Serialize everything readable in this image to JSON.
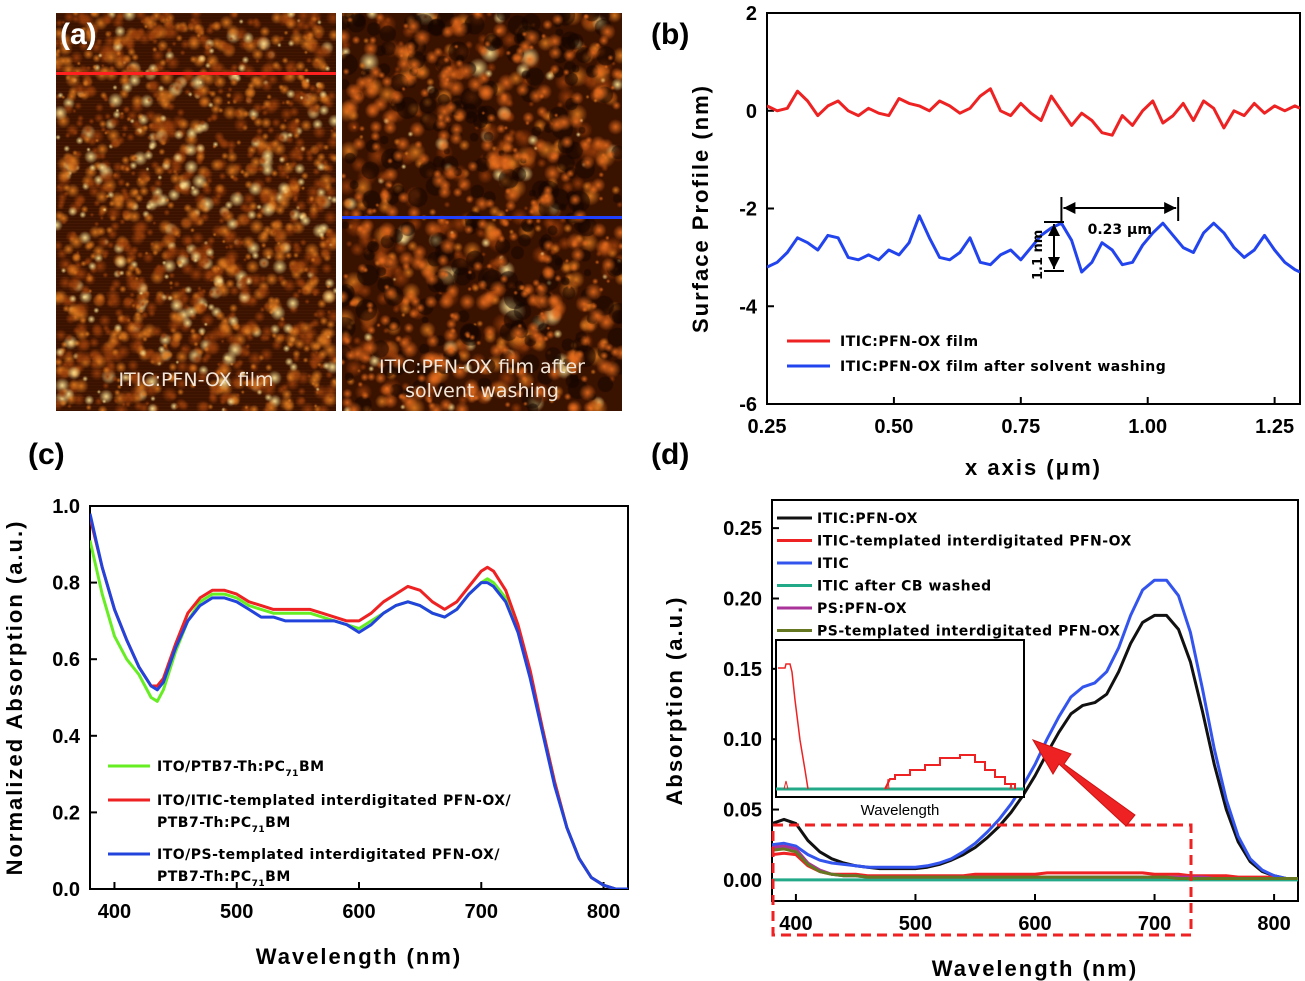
{
  "panels": {
    "a": {
      "label": "(a)",
      "left_caption": "ITIC:PFN-OX film",
      "right_caption_line1": "ITIC:PFN-OX film  after",
      "right_caption_line2": "solvent washing",
      "line_colors": {
        "left": "#ff2020",
        "right": "#2020ff"
      }
    },
    "b_label": "(b)",
    "c_label": "(c)",
    "d_label": "(d)"
  },
  "chart_data": [
    {
      "id": "b",
      "type": "line",
      "xlabel": "x axis (μm)",
      "ylabel": "Surface Profile (nm)",
      "xlim": [
        0.25,
        1.3
      ],
      "ylim": [
        -6,
        2
      ],
      "xticks": [
        "0.25",
        "0.50",
        "0.75",
        "1.00",
        "1.25"
      ],
      "xtick_values": [
        0.25,
        0.5,
        0.75,
        1.0,
        1.25
      ],
      "yticks": [
        "2",
        "0",
        "-2",
        "-4",
        "-6"
      ],
      "ytick_values": [
        2,
        0,
        -2,
        -4,
        -6
      ],
      "legend": "bottom-left",
      "series": [
        {
          "name": "ITIC:PFN-OX film",
          "color": "#ee2222",
          "x": [
            0.25,
            0.27,
            0.29,
            0.31,
            0.33,
            0.35,
            0.37,
            0.39,
            0.41,
            0.43,
            0.45,
            0.47,
            0.49,
            0.51,
            0.53,
            0.55,
            0.57,
            0.59,
            0.61,
            0.63,
            0.65,
            0.67,
            0.69,
            0.71,
            0.73,
            0.75,
            0.77,
            0.79,
            0.81,
            0.83,
            0.85,
            0.87,
            0.89,
            0.91,
            0.93,
            0.95,
            0.97,
            0.99,
            1.01,
            1.03,
            1.05,
            1.07,
            1.09,
            1.11,
            1.13,
            1.15,
            1.17,
            1.19,
            1.21,
            1.23,
            1.25,
            1.27,
            1.29,
            1.3
          ],
          "y": [
            0.1,
            0.0,
            0.05,
            0.4,
            0.2,
            -0.1,
            0.1,
            0.2,
            0.0,
            -0.1,
            0.05,
            -0.05,
            -0.1,
            0.25,
            0.15,
            0.1,
            0.0,
            0.2,
            0.1,
            -0.05,
            0.05,
            0.3,
            0.45,
            0.0,
            -0.1,
            0.15,
            -0.05,
            -0.2,
            0.3,
            0.0,
            -0.3,
            -0.05,
            -0.2,
            -0.45,
            -0.5,
            -0.1,
            -0.3,
            0.0,
            0.2,
            -0.25,
            -0.1,
            0.15,
            -0.2,
            0.2,
            0.05,
            -0.35,
            0.0,
            -0.1,
            0.15,
            -0.05,
            0.1,
            0.0,
            0.1,
            0.05
          ]
        },
        {
          "name": "ITIC:PFN-OX film after solvent washing",
          "color": "#2244ee",
          "x": [
            0.25,
            0.27,
            0.29,
            0.31,
            0.33,
            0.35,
            0.37,
            0.39,
            0.41,
            0.43,
            0.45,
            0.47,
            0.49,
            0.51,
            0.53,
            0.55,
            0.57,
            0.59,
            0.61,
            0.63,
            0.65,
            0.67,
            0.69,
            0.71,
            0.73,
            0.75,
            0.77,
            0.79,
            0.81,
            0.83,
            0.85,
            0.87,
            0.89,
            0.91,
            0.93,
            0.95,
            0.97,
            0.99,
            1.01,
            1.03,
            1.05,
            1.07,
            1.09,
            1.11,
            1.13,
            1.15,
            1.17,
            1.19,
            1.21,
            1.23,
            1.25,
            1.27,
            1.29,
            1.3
          ],
          "y": [
            -3.2,
            -3.1,
            -2.9,
            -2.6,
            -2.7,
            -2.85,
            -2.55,
            -2.6,
            -3.0,
            -3.05,
            -2.95,
            -3.05,
            -2.85,
            -2.95,
            -2.7,
            -2.15,
            -2.6,
            -3.0,
            -3.05,
            -2.9,
            -2.6,
            -3.1,
            -3.15,
            -2.95,
            -2.85,
            -3.05,
            -2.8,
            -2.55,
            -2.4,
            -2.3,
            -2.65,
            -3.3,
            -3.1,
            -2.7,
            -2.85,
            -3.15,
            -3.1,
            -2.75,
            -2.5,
            -2.3,
            -2.55,
            -2.8,
            -2.9,
            -2.5,
            -2.3,
            -2.5,
            -2.8,
            -3.0,
            -2.85,
            -2.55,
            -2.85,
            -3.1,
            -3.25,
            -3.3
          ]
        }
      ],
      "annotations": {
        "width_label": "0.23 μm",
        "height_label": "1.1 nm"
      }
    },
    {
      "id": "c",
      "type": "line",
      "xlabel": "Wavelength (nm)",
      "ylabel": "Normalized Absorption (a.u.)",
      "xlim": [
        380,
        820
      ],
      "ylim": [
        0,
        1.0
      ],
      "xticks": [
        "400",
        "500",
        "600",
        "700",
        "800"
      ],
      "xtick_values": [
        400,
        500,
        600,
        700,
        800
      ],
      "yticks": [
        "0.0",
        "0.2",
        "0.4",
        "0.6",
        "0.8",
        "1.0"
      ],
      "ytick_values": [
        0,
        0.2,
        0.4,
        0.6,
        0.8,
        1.0
      ],
      "legend": "bottom-left",
      "legend_entries": [
        {
          "line1": "ITO/PTB7-Th:PC",
          "sub1": "71",
          "tail1": "BM"
        },
        {
          "line1": "ITO/ITIC-templated interdigitated PFN-OX/",
          "line2": "PTB7-Th:PC",
          "sub2": "71",
          "tail2": "BM"
        },
        {
          "line1": "ITO/PS-templated interdigitated PFN-OX/",
          "line2": "PTB7-Th:PC",
          "sub2": "71",
          "tail2": "BM"
        }
      ],
      "x": [
        380,
        390,
        400,
        410,
        420,
        430,
        435,
        440,
        450,
        460,
        470,
        480,
        490,
        500,
        510,
        520,
        530,
        540,
        550,
        560,
        570,
        580,
        590,
        600,
        610,
        620,
        630,
        640,
        650,
        660,
        670,
        680,
        690,
        700,
        705,
        710,
        720,
        730,
        740,
        750,
        760,
        770,
        780,
        790,
        800,
        810,
        820
      ],
      "series": [
        {
          "name": "ITO/PTB7-Th:PC71BM",
          "color": "#66ee22",
          "y": [
            0.91,
            0.77,
            0.66,
            0.6,
            0.56,
            0.5,
            0.49,
            0.52,
            0.62,
            0.7,
            0.75,
            0.77,
            0.77,
            0.76,
            0.74,
            0.73,
            0.72,
            0.72,
            0.72,
            0.72,
            0.71,
            0.7,
            0.69,
            0.68,
            0.7,
            0.72,
            0.74,
            0.75,
            0.74,
            0.72,
            0.71,
            0.73,
            0.77,
            0.8,
            0.81,
            0.8,
            0.76,
            0.68,
            0.56,
            0.42,
            0.28,
            0.16,
            0.08,
            0.03,
            0.01,
            0.0,
            0.0
          ]
        },
        {
          "name": "ITO/ITIC-templated interdigitated PFN-OX/PTB7-Th:PC71BM",
          "color": "#ee2222",
          "y": [
            0.97,
            0.84,
            0.73,
            0.65,
            0.58,
            0.53,
            0.53,
            0.55,
            0.64,
            0.72,
            0.76,
            0.78,
            0.78,
            0.77,
            0.75,
            0.74,
            0.73,
            0.73,
            0.73,
            0.73,
            0.72,
            0.71,
            0.7,
            0.7,
            0.72,
            0.75,
            0.77,
            0.79,
            0.78,
            0.75,
            0.73,
            0.75,
            0.79,
            0.83,
            0.84,
            0.83,
            0.78,
            0.69,
            0.57,
            0.42,
            0.28,
            0.16,
            0.08,
            0.03,
            0.01,
            0.0,
            0.0
          ]
        },
        {
          "name": "ITO/PS-templated interdigitated PFN-OX/PTB7-Th:PC71BM",
          "color": "#2244dd",
          "y": [
            0.98,
            0.84,
            0.73,
            0.65,
            0.58,
            0.53,
            0.52,
            0.54,
            0.63,
            0.7,
            0.74,
            0.76,
            0.76,
            0.75,
            0.73,
            0.71,
            0.71,
            0.7,
            0.7,
            0.7,
            0.7,
            0.7,
            0.69,
            0.67,
            0.69,
            0.72,
            0.74,
            0.75,
            0.74,
            0.72,
            0.71,
            0.73,
            0.77,
            0.8,
            0.8,
            0.79,
            0.75,
            0.67,
            0.55,
            0.41,
            0.27,
            0.16,
            0.08,
            0.03,
            0.01,
            0.0,
            0.0
          ]
        }
      ]
    },
    {
      "id": "d",
      "type": "line",
      "xlabel": "Wavelength (nm)",
      "ylabel": "Absorption (a.u.)",
      "xlim": [
        380,
        820
      ],
      "ylim": [
        -0.015,
        0.27
      ],
      "xticks": [
        "400",
        "500",
        "600",
        "700",
        "800"
      ],
      "xtick_values": [
        400,
        500,
        600,
        700,
        800
      ],
      "yticks": [
        "0.00",
        "0.05",
        "0.10",
        "0.15",
        "0.20",
        "0.25"
      ],
      "ytick_values": [
        0,
        0.05,
        0.1,
        0.15,
        0.2,
        0.25
      ],
      "legend": "top-left",
      "x": [
        380,
        390,
        400,
        410,
        420,
        430,
        440,
        450,
        460,
        470,
        480,
        490,
        500,
        510,
        520,
        530,
        540,
        550,
        560,
        570,
        580,
        590,
        600,
        610,
        620,
        630,
        640,
        650,
        660,
        670,
        680,
        690,
        700,
        710,
        720,
        730,
        740,
        750,
        760,
        770,
        780,
        790,
        800,
        810,
        820
      ],
      "series": [
        {
          "name": "ITIC:PFN-OX",
          "color": "#111111",
          "y": [
            0.04,
            0.043,
            0.04,
            0.028,
            0.02,
            0.015,
            0.012,
            0.01,
            0.009,
            0.008,
            0.008,
            0.008,
            0.008,
            0.009,
            0.011,
            0.014,
            0.018,
            0.023,
            0.03,
            0.038,
            0.048,
            0.06,
            0.074,
            0.09,
            0.105,
            0.118,
            0.124,
            0.126,
            0.132,
            0.148,
            0.168,
            0.183,
            0.188,
            0.188,
            0.178,
            0.155,
            0.12,
            0.082,
            0.05,
            0.027,
            0.013,
            0.006,
            0.003,
            0.001,
            0.001
          ]
        },
        {
          "name": "ITIC-templated interdigitated PFN-OX",
          "color": "#ee2222",
          "y": [
            0.018,
            0.019,
            0.018,
            0.01,
            0.006,
            0.004,
            0.004,
            0.004,
            0.003,
            0.003,
            0.003,
            0.003,
            0.003,
            0.003,
            0.003,
            0.003,
            0.003,
            0.004,
            0.004,
            0.004,
            0.004,
            0.004,
            0.004,
            0.005,
            0.005,
            0.005,
            0.005,
            0.005,
            0.005,
            0.005,
            0.005,
            0.005,
            0.004,
            0.004,
            0.004,
            0.003,
            0.003,
            0.003,
            0.003,
            0.002,
            0.002,
            0.002,
            0.002,
            0.001,
            0.001
          ]
        },
        {
          "name": "ITIC",
          "color": "#3355ee",
          "y": [
            0.025,
            0.026,
            0.024,
            0.018,
            0.014,
            0.012,
            0.011,
            0.01,
            0.009,
            0.009,
            0.009,
            0.009,
            0.009,
            0.01,
            0.012,
            0.015,
            0.02,
            0.026,
            0.034,
            0.043,
            0.054,
            0.067,
            0.082,
            0.1,
            0.116,
            0.13,
            0.137,
            0.14,
            0.148,
            0.165,
            0.188,
            0.206,
            0.213,
            0.213,
            0.202,
            0.176,
            0.136,
            0.093,
            0.057,
            0.031,
            0.015,
            0.007,
            0.003,
            0.001,
            0.001
          ]
        },
        {
          "name": "ITIC after CB washed",
          "color": "#22aa88",
          "y": [
            0.0,
            0.0,
            0.0,
            0.0,
            0.0,
            0.0,
            0.0,
            0.0,
            0.0,
            0.0,
            0.0,
            0.0,
            0.0,
            0.0,
            0.0,
            0.0,
            0.0,
            0.0,
            0.0,
            0.0,
            0.0,
            0.0,
            0.0,
            0.0,
            0.0,
            0.0,
            0.0,
            0.0,
            0.0,
            0.0,
            0.0,
            0.0,
            0.0,
            0.0,
            0.0,
            0.0,
            0.0,
            0.0,
            0.0,
            0.0,
            0.0,
            0.0,
            0.0,
            0.0,
            0.0
          ]
        },
        {
          "name": "PS:PFN-OX",
          "color": "#aa3399",
          "y": [
            0.023,
            0.024,
            0.022,
            0.012,
            0.007,
            0.004,
            0.003,
            0.003,
            0.002,
            0.002,
            0.002,
            0.002,
            0.002,
            0.002,
            0.002,
            0.002,
            0.002,
            0.002,
            0.002,
            0.002,
            0.002,
            0.002,
            0.002,
            0.002,
            0.002,
            0.002,
            0.002,
            0.002,
            0.002,
            0.002,
            0.002,
            0.002,
            0.002,
            0.002,
            0.002,
            0.002,
            0.002,
            0.001,
            0.001,
            0.001,
            0.001,
            0.001,
            0.001,
            0.001,
            0.001
          ]
        },
        {
          "name": "PS-templated interdigitated PFN-OX",
          "color": "#667722",
          "y": [
            0.021,
            0.022,
            0.02,
            0.011,
            0.006,
            0.004,
            0.003,
            0.003,
            0.002,
            0.002,
            0.002,
            0.002,
            0.002,
            0.002,
            0.002,
            0.002,
            0.002,
            0.002,
            0.002,
            0.002,
            0.002,
            0.002,
            0.002,
            0.002,
            0.002,
            0.002,
            0.002,
            0.002,
            0.002,
            0.002,
            0.002,
            0.002,
            0.002,
            0.002,
            0.001,
            0.001,
            0.001,
            0.001,
            0.001,
            0.001,
            0.001,
            0.001,
            0.001,
            0.001,
            0.001
          ]
        }
      ],
      "inset": {
        "xlabel": "Wavelength"
      }
    }
  ]
}
